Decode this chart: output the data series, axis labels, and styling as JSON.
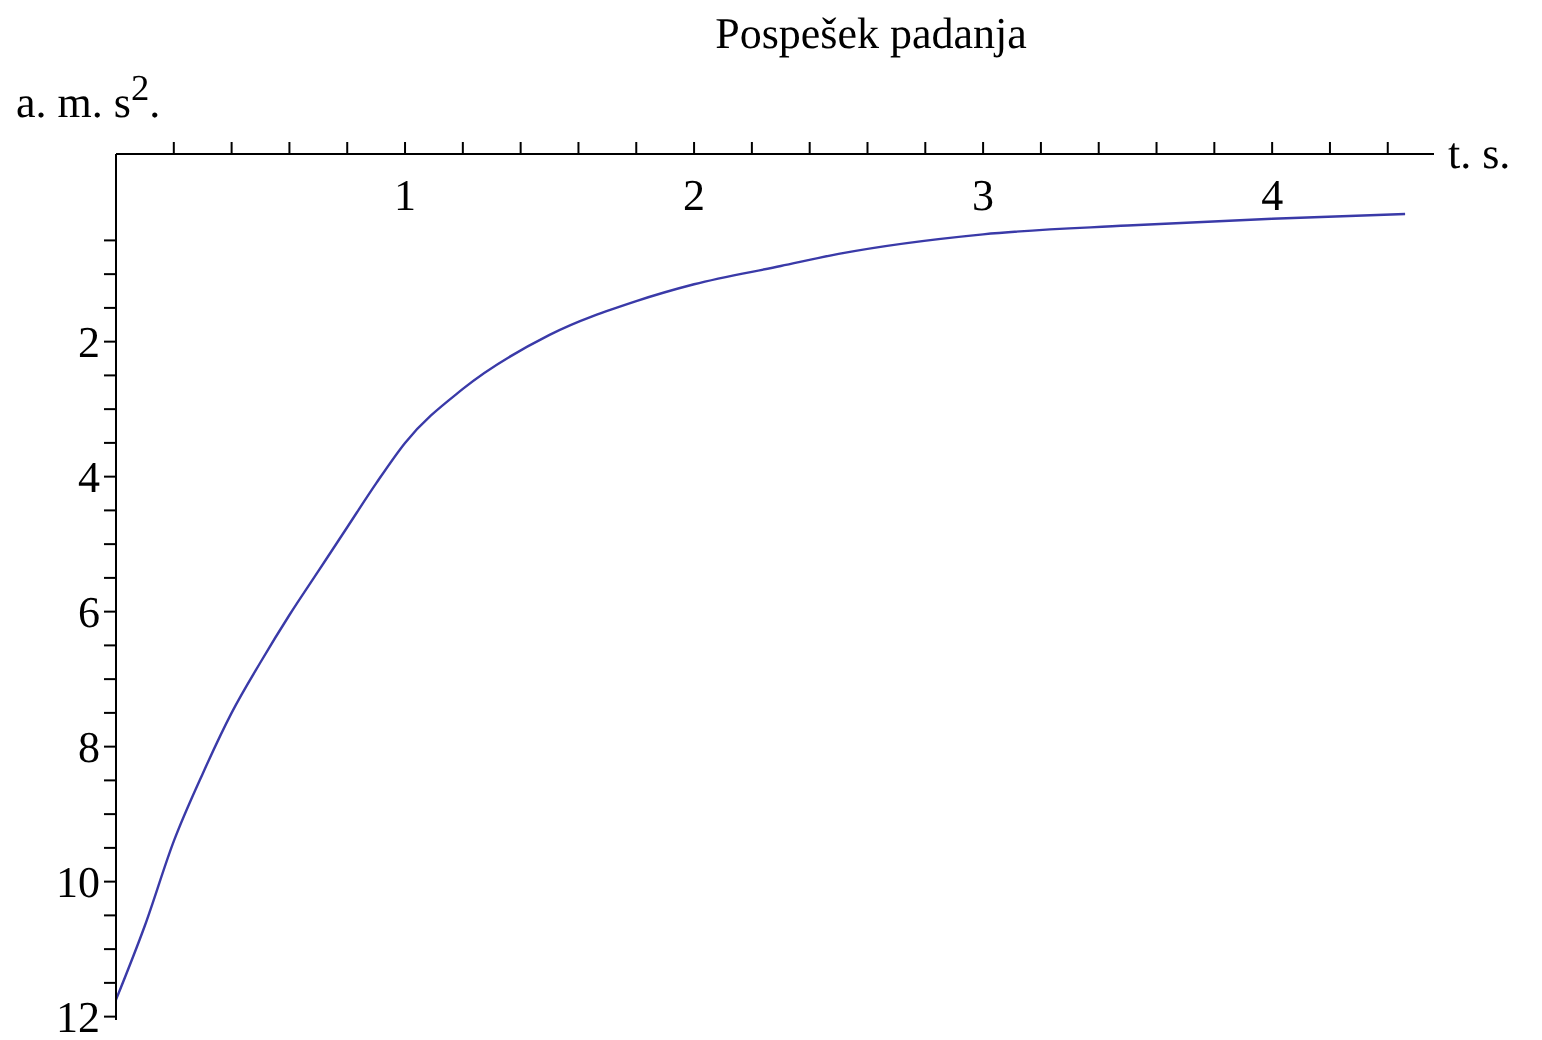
{
  "chart_data": {
    "type": "line",
    "title": "Pospešek padanja",
    "xlabel": "t. s.",
    "ylabel": "a. m. s$^{2}$.",
    "x": [
      0,
      0.1,
      0.2,
      0.3,
      0.4,
      0.5,
      0.6,
      0.7,
      0.8,
      0.9,
      1,
      1.2,
      1.5,
      1.8,
      2,
      2.3,
      2.5,
      3,
      3.5,
      4,
      4.46
    ],
    "series": [
      {
        "color": "#3a3aa8",
        "values": [
          11.75,
          10.65,
          9.4,
          8.4,
          7.5,
          6.75,
          6.05,
          5.4,
          4.75,
          4.1,
          3.5,
          2.7,
          1.9,
          1.4,
          1.15,
          0.88,
          0.7,
          0.41,
          0.28,
          0.18,
          0.11
        ]
      }
    ],
    "xlim": [
      0,
      4.56
    ],
    "ylim": [
      12.05,
      -0.78
    ],
    "xticks": [
      {
        "value": 0.2,
        "label": null
      },
      {
        "value": 0.4,
        "label": null
      },
      {
        "value": 0.6,
        "label": null
      },
      {
        "value": 0.8,
        "label": null
      },
      1,
      {
        "value": 1.2,
        "label": null
      },
      {
        "value": 1.4,
        "label": null
      },
      {
        "value": 1.6,
        "label": null
      },
      {
        "value": 1.8,
        "label": null
      },
      2,
      {
        "value": 2.2,
        "label": null
      },
      {
        "value": 2.4,
        "label": null
      },
      {
        "value": 2.6,
        "label": null
      },
      {
        "value": 2.8,
        "label": null
      },
      3,
      {
        "value": 3.2,
        "label": null
      },
      {
        "value": 3.4,
        "label": null
      },
      {
        "value": 3.6,
        "label": null
      },
      {
        "value": 3.8,
        "label": null
      },
      4,
      {
        "value": 4.2,
        "label": null
      },
      {
        "value": 4.4,
        "label": null
      }
    ],
    "yticks": [
      {
        "value": 0.5,
        "label": null
      },
      {
        "value": 1,
        "label": null
      },
      {
        "value": 1.5,
        "label": null
      },
      2,
      {
        "value": 2.5,
        "label": null
      },
      {
        "value": 3,
        "label": null
      },
      {
        "value": 3.5,
        "label": null
      },
      4,
      {
        "value": 4.5,
        "label": null
      },
      {
        "value": 5,
        "label": null
      },
      {
        "value": 5.5,
        "label": null
      },
      6,
      {
        "value": 6.5,
        "label": null
      },
      {
        "value": 7,
        "label": null
      },
      {
        "value": 7.5,
        "label": null
      },
      8,
      {
        "value": 8.5,
        "label": null
      },
      {
        "value": 9,
        "label": null
      },
      {
        "value": 9.5,
        "label": null
      },
      10,
      {
        "value": 10.5,
        "label": null
      },
      {
        "value": 11,
        "label": null
      },
      {
        "value": 11.5,
        "label": null
      },
      12
    ],
    "grid": false,
    "legend": false,
    "marker": "none",
    "line_style": "solid"
  }
}
